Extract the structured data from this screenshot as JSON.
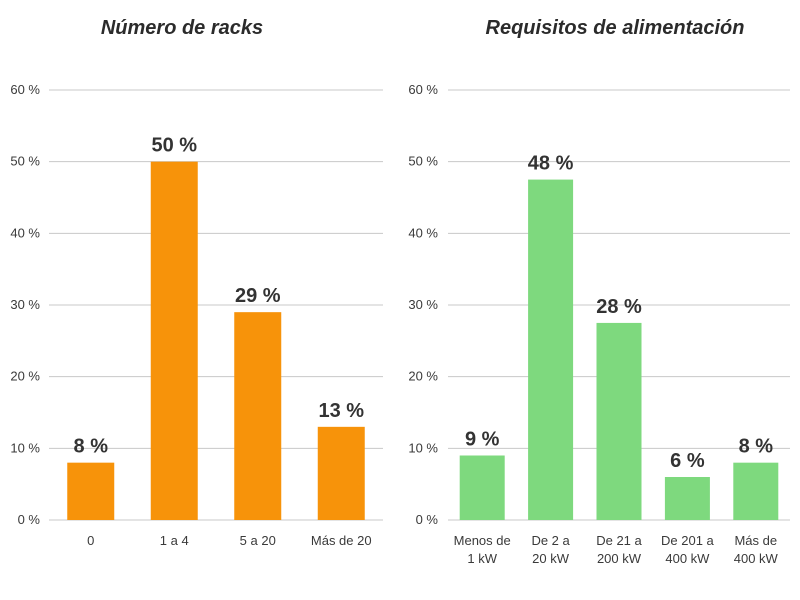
{
  "chart_data": [
    {
      "type": "bar",
      "title": "Número de racks",
      "categories": [
        [
          "0"
        ],
        [
          "1 a 4"
        ],
        [
          "5 a 20"
        ],
        [
          "Más de 20"
        ]
      ],
      "values": [
        8,
        50,
        29,
        13
      ],
      "data_labels": [
        "8 %",
        "50 %",
        "29 %",
        "13 %"
      ],
      "ylim": [
        0,
        60
      ],
      "yticks": [
        "0 %",
        "10 %",
        "20 %",
        "30 %",
        "40 %",
        "50 %",
        "60 %"
      ],
      "color": "#F7930A",
      "grid": true
    },
    {
      "type": "bar",
      "title": "Requisitos de alimentación",
      "categories": [
        [
          "Menos de",
          "1 kW"
        ],
        [
          "De 2 a",
          "20 kW"
        ],
        [
          "De 21 a",
          "200 kW"
        ],
        [
          "De 201 a",
          "400 kW"
        ],
        [
          "Más de",
          "400 kW"
        ]
      ],
      "values": [
        9,
        47.5,
        27.5,
        6,
        8
      ],
      "data_labels": [
        "9 %",
        "48 %",
        "28 %",
        "6 %",
        "8 %"
      ],
      "ylim": [
        0,
        60
      ],
      "yticks": [
        "0 %",
        "10 %",
        "20 %",
        "30 %",
        "40 %",
        "50 %",
        "60 %"
      ],
      "color": "#7ED97E",
      "grid": true
    }
  ]
}
